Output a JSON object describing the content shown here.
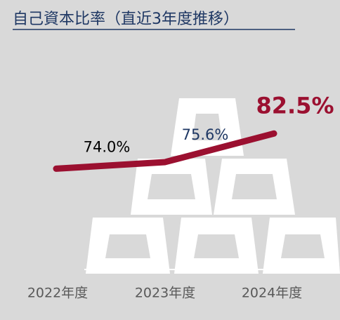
{
  "chart_data": {
    "type": "line",
    "title": "自己資本比率（直近3年度推移）",
    "categories": [
      "2022年度",
      "2023年度",
      "2024年度"
    ],
    "values": [
      74.0,
      75.6,
      82.5
    ],
    "value_labels": [
      "74.0%",
      "75.6%",
      "82.5%"
    ],
    "color": "#9b1030",
    "ylim": [
      60,
      90
    ]
  }
}
